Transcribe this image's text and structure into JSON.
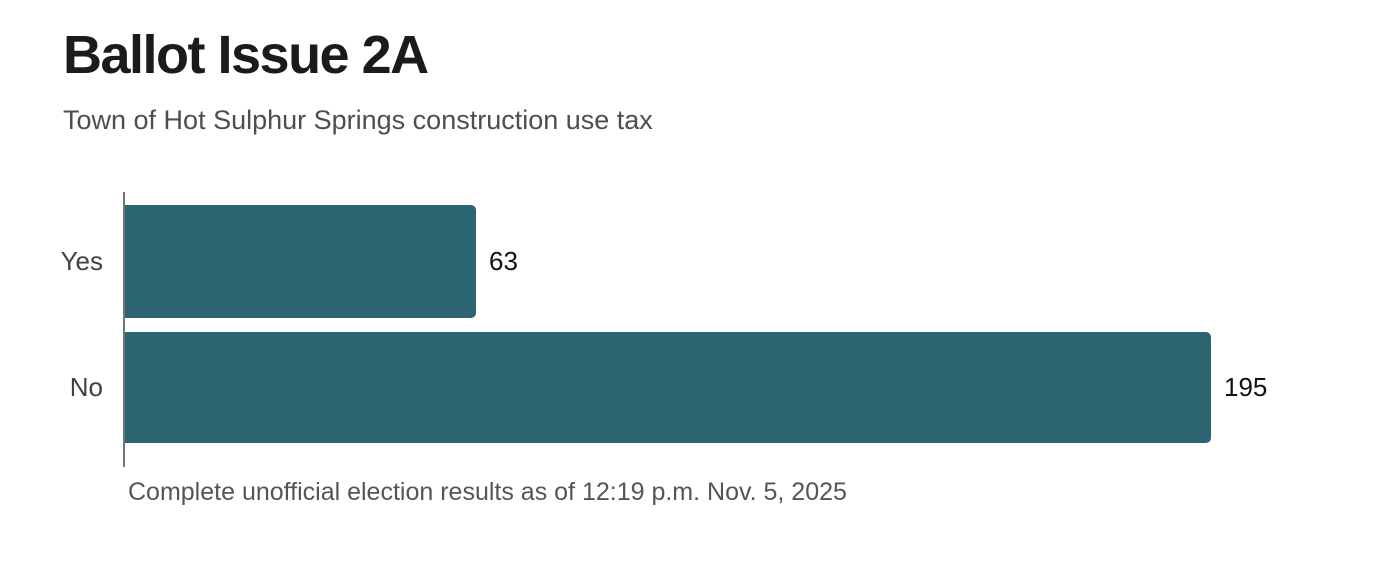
{
  "header": {
    "title": "Ballot Issue 2A",
    "subtitle": "Town of Hot Sulphur Springs construction use tax"
  },
  "footer": {
    "note": "Complete unofficial election results as of 12:19 p.m. Nov. 5, 2025"
  },
  "colors": {
    "bar": "#2d6472",
    "axis": "#757575",
    "title_text": "#1b1b1b",
    "subtitle_text": "#4e4e4e",
    "category_text": "#424242",
    "value_text": "#111111",
    "footer_text": "#555555"
  },
  "chart_data": {
    "type": "bar",
    "orientation": "horizontal",
    "title": "Ballot Issue 2A",
    "subtitle": "Town of Hot Sulphur Springs construction use tax",
    "categories": [
      "Yes",
      "No"
    ],
    "values": [
      63,
      195
    ],
    "value_labels": [
      "63",
      "195"
    ],
    "xlabel": "",
    "ylabel": "",
    "xlim": [
      0,
      195
    ],
    "grid": false,
    "legend": false,
    "annotation": "Complete unofficial election results as of 12:19 p.m. Nov. 5, 2025"
  }
}
